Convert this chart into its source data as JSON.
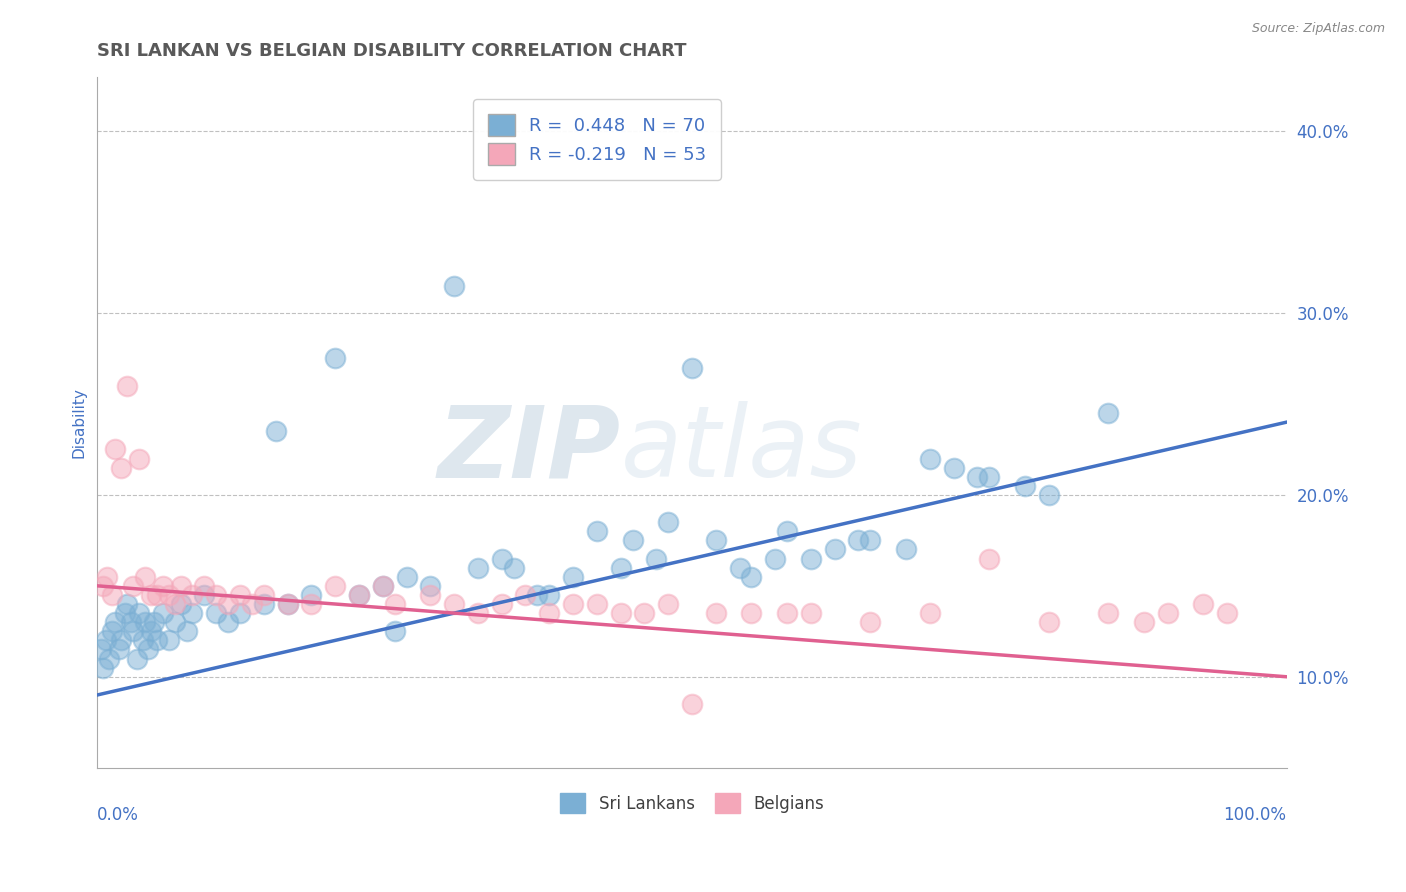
{
  "title": "SRI LANKAN VS BELGIAN DISABILITY CORRELATION CHART",
  "source": "Source: ZipAtlas.com",
  "ylabel": "Disability",
  "watermark_zip": "ZIP",
  "watermark_atlas": "atlas",
  "sri_lankan_color": "#7bafd4",
  "belgian_color": "#f4a7b9",
  "sri_lankan_line_color": "#4472c4",
  "belgian_line_color": "#e06090",
  "legend_text_color": "#4472c4",
  "title_color": "#595959",
  "axis_label_color": "#4472c4",
  "background_color": "#ffffff",
  "plot_bg_color": "#ffffff",
  "grid_color": "#c0c0c0",
  "sl_line_y0": 9.0,
  "sl_line_y1": 24.0,
  "be_line_y0": 15.0,
  "be_line_y1": 10.0,
  "y_ticks": [
    10,
    20,
    30,
    40
  ],
  "y_labels": [
    "10.0%",
    "20.0%",
    "30.0%",
    "40.0%"
  ],
  "xlim": [
    0,
    100
  ],
  "ylim": [
    5,
    43
  ],
  "sri_lankans_x": [
    0.3,
    0.5,
    0.7,
    1.0,
    1.2,
    1.5,
    1.8,
    2.0,
    2.3,
    2.5,
    2.8,
    3.0,
    3.3,
    3.5,
    3.8,
    4.0,
    4.3,
    4.5,
    4.8,
    5.0,
    5.5,
    6.0,
    6.5,
    7.0,
    7.5,
    8.0,
    9.0,
    10.0,
    11.0,
    12.0,
    14.0,
    15.0,
    16.0,
    18.0,
    20.0,
    22.0,
    24.0,
    25.0,
    26.0,
    28.0,
    30.0,
    32.0,
    34.0,
    35.0,
    37.0,
    38.0,
    40.0,
    42.0,
    44.0,
    45.0,
    47.0,
    48.0,
    50.0,
    52.0,
    54.0,
    55.0,
    57.0,
    58.0,
    60.0,
    62.0,
    64.0,
    65.0,
    68.0,
    70.0,
    72.0,
    74.0,
    75.0,
    78.0,
    80.0,
    85.0
  ],
  "sri_lankans_y": [
    11.5,
    10.5,
    12.0,
    11.0,
    12.5,
    13.0,
    11.5,
    12.0,
    13.5,
    14.0,
    13.0,
    12.5,
    11.0,
    13.5,
    12.0,
    13.0,
    11.5,
    12.5,
    13.0,
    12.0,
    13.5,
    12.0,
    13.0,
    14.0,
    12.5,
    13.5,
    14.5,
    13.5,
    13.0,
    13.5,
    14.0,
    23.5,
    14.0,
    14.5,
    27.5,
    14.5,
    15.0,
    12.5,
    15.5,
    15.0,
    31.5,
    16.0,
    16.5,
    16.0,
    14.5,
    14.5,
    15.5,
    18.0,
    16.0,
    17.5,
    16.5,
    18.5,
    27.0,
    17.5,
    16.0,
    15.5,
    16.5,
    18.0,
    16.5,
    17.0,
    17.5,
    17.5,
    17.0,
    22.0,
    21.5,
    21.0,
    21.0,
    20.5,
    20.0,
    24.5
  ],
  "belgians_x": [
    0.5,
    0.8,
    1.2,
    1.5,
    2.0,
    2.5,
    3.0,
    3.5,
    4.0,
    4.5,
    5.0,
    5.5,
    6.0,
    6.5,
    7.0,
    8.0,
    9.0,
    10.0,
    11.0,
    12.0,
    13.0,
    14.0,
    16.0,
    18.0,
    20.0,
    22.0,
    24.0,
    25.0,
    28.0,
    30.0,
    32.0,
    34.0,
    36.0,
    38.0,
    40.0,
    42.0,
    44.0,
    46.0,
    48.0,
    50.0,
    52.0,
    55.0,
    58.0,
    60.0,
    65.0,
    70.0,
    75.0,
    80.0,
    85.0,
    88.0,
    90.0,
    93.0,
    95.0
  ],
  "belgians_y": [
    15.0,
    15.5,
    14.5,
    22.5,
    21.5,
    26.0,
    15.0,
    22.0,
    15.5,
    14.5,
    14.5,
    15.0,
    14.5,
    14.0,
    15.0,
    14.5,
    15.0,
    14.5,
    14.0,
    14.5,
    14.0,
    14.5,
    14.0,
    14.0,
    15.0,
    14.5,
    15.0,
    14.0,
    14.5,
    14.0,
    13.5,
    14.0,
    14.5,
    13.5,
    14.0,
    14.0,
    13.5,
    13.5,
    14.0,
    8.5,
    13.5,
    13.5,
    13.5,
    13.5,
    13.0,
    13.5,
    16.5,
    13.0,
    13.5,
    13.0,
    13.5,
    14.0,
    13.5
  ]
}
